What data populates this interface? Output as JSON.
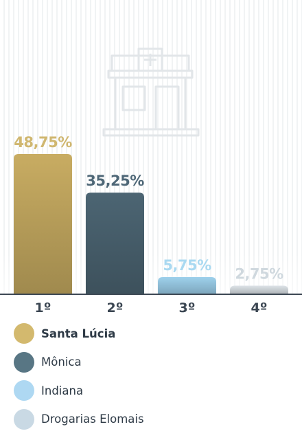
{
  "chart_data": {
    "type": "bar",
    "title": "",
    "xlabel": "",
    "ylabel": "",
    "ylim": [
      0,
      48.75
    ],
    "categories": [
      "1º",
      "2º",
      "3º",
      "4º"
    ],
    "value_labels": [
      "48,75%",
      "35,25%",
      "5,75%",
      "2,75%"
    ],
    "series": [
      {
        "values": [
          48.75,
          35.25,
          5.75,
          2.75
        ]
      }
    ],
    "bar_names": [
      "Santa Lúcia",
      "Mônica",
      "Indiana",
      "Drogarias Elomais"
    ],
    "bar_colors": [
      "#c8ac62",
      "#4c6573",
      "#9ed1ec",
      "#dde3e8"
    ],
    "label_colors": [
      "#d0b770",
      "#4e6777",
      "#a9d9f1",
      "#cfd8de"
    ],
    "grid": false,
    "legend": "bottom"
  },
  "legend": {
    "items": [
      {
        "label": "Santa Lúcia",
        "color": "#d3b96e",
        "highlight": true
      },
      {
        "label": "Mônica",
        "color": "#587684",
        "highlight": false
      },
      {
        "label": "Indiana",
        "color": "#aed8f2",
        "highlight": false
      },
      {
        "label": "Drogarias Elomais",
        "color": "#c9d9e4",
        "highlight": false
      }
    ]
  },
  "background": {
    "icon": "pharmacy-building-icon"
  }
}
